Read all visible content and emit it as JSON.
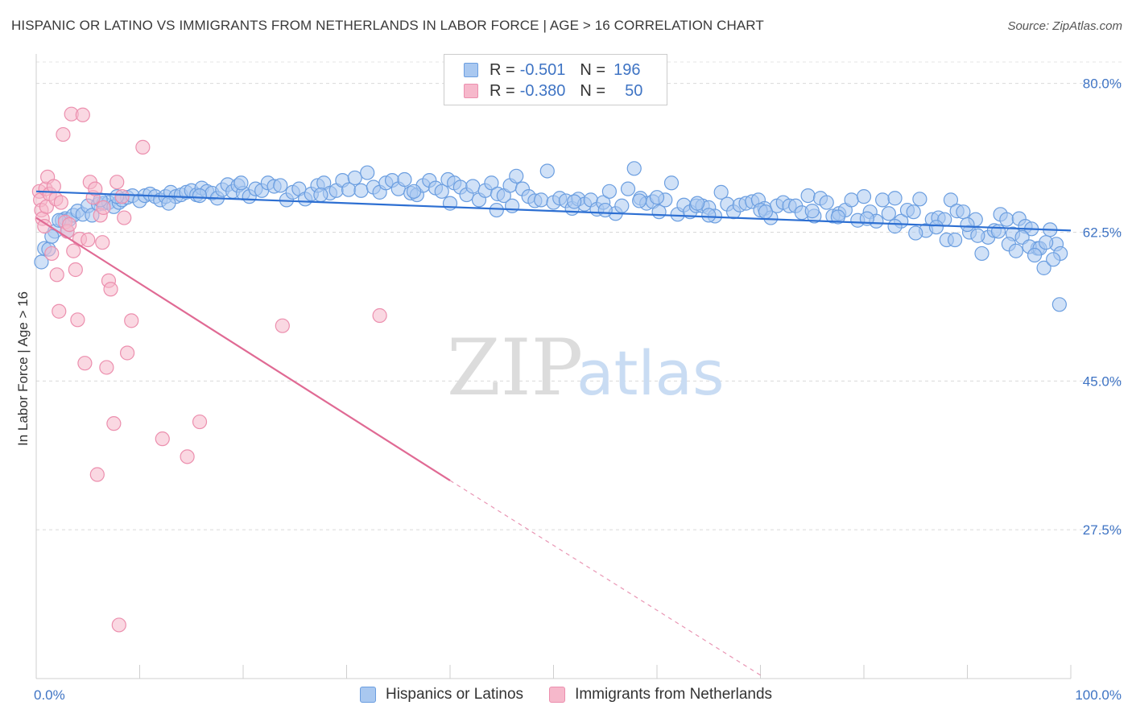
{
  "header": {
    "title": "HISPANIC OR LATINO VS IMMIGRANTS FROM NETHERLANDS IN LABOR FORCE | AGE > 16 CORRELATION CHART",
    "source": "Source: ZipAtlas.com"
  },
  "watermark": {
    "zip": "ZIP",
    "atlas": "atlas"
  },
  "legend": {
    "rows": [
      {
        "r_label": "R =",
        "r_value": "-0.501",
        "n_label": "N =",
        "n_value": "196",
        "color": "#a9c8f0"
      },
      {
        "r_label": "R =",
        "r_value": "-0.380",
        "n_label": "N =",
        "n_value": "50",
        "color": "#f6b8cb"
      }
    ]
  },
  "bottom_legend": [
    {
      "label": "Hispanics or Latinos",
      "color": "#a9c8f0"
    },
    {
      "label": "Immigrants from Netherlands",
      "color": "#f6b8cb"
    }
  ],
  "chart_data": {
    "type": "scatter",
    "title": "HISPANIC OR LATINO VS IMMIGRANTS FROM NETHERLANDS IN LABOR FORCE | AGE > 16 CORRELATION CHART",
    "xlabel": "",
    "ylabel": "In Labor Force | Age > 16",
    "xlim": [
      0,
      100
    ],
    "ylim": [
      10,
      83
    ],
    "x_tick_labels": [
      "0.0%",
      "100.0%"
    ],
    "y_ticks": [
      27.5,
      45.0,
      62.5,
      80.0
    ],
    "y_tick_labels": [
      "27.5%",
      "45.0%",
      "62.5%",
      "80.0%"
    ],
    "grid": true,
    "legend_position": "top-center",
    "series": [
      {
        "name": "Hispanics or Latinos",
        "color": "#a9c8f0",
        "stroke": "#6b9ee0",
        "trend": {
          "x": [
            0,
            100
          ],
          "y": [
            67.3,
            62.7
          ],
          "color": "#2d6fd2"
        },
        "points": [
          [
            0.5,
            59
          ],
          [
            0.8,
            60.6
          ],
          [
            1.2,
            60.5
          ],
          [
            1.8,
            62.6
          ],
          [
            2.5,
            63.9
          ],
          [
            2.8,
            64.1
          ],
          [
            3.2,
            64.0
          ],
          [
            3.6,
            64.5
          ],
          [
            4.0,
            65.0
          ],
          [
            4.5,
            64.6
          ],
          [
            5.0,
            65.6
          ],
          [
            5.4,
            64.5
          ],
          [
            6.0,
            65.8
          ],
          [
            6.5,
            65.9
          ],
          [
            7.0,
            66.0
          ],
          [
            7.5,
            65.5
          ],
          [
            8.0,
            66.0
          ],
          [
            8.3,
            66.3
          ],
          [
            8.8,
            66.6
          ],
          [
            9.3,
            66.8
          ],
          [
            10.0,
            66.2
          ],
          [
            10.5,
            66.8
          ],
          [
            11.0,
            67.0
          ],
          [
            11.5,
            66.7
          ],
          [
            12.0,
            66.3
          ],
          [
            12.5,
            66.7
          ],
          [
            13.0,
            67.2
          ],
          [
            13.5,
            66.7
          ],
          [
            14.0,
            66.9
          ],
          [
            14.5,
            67.2
          ],
          [
            15.0,
            67.4
          ],
          [
            15.5,
            66.9
          ],
          [
            16.0,
            67.7
          ],
          [
            16.5,
            67.3
          ],
          [
            17.0,
            67.1
          ],
          [
            17.5,
            66.5
          ],
          [
            18.0,
            67.5
          ],
          [
            18.5,
            68.1
          ],
          [
            19.0,
            67.3
          ],
          [
            19.5,
            68.0
          ],
          [
            20.0,
            67.1
          ],
          [
            20.6,
            66.7
          ],
          [
            21.2,
            67.6
          ],
          [
            21.8,
            67.4
          ],
          [
            22.4,
            68.3
          ],
          [
            23.0,
            67.9
          ],
          [
            23.6,
            68.0
          ],
          [
            24.2,
            66.3
          ],
          [
            24.8,
            67.2
          ],
          [
            25.4,
            67.6
          ],
          [
            26.0,
            66.4
          ],
          [
            26.6,
            67.0
          ],
          [
            27.2,
            68.0
          ],
          [
            27.8,
            68.3
          ],
          [
            28.4,
            67.1
          ],
          [
            29.0,
            67.4
          ],
          [
            29.6,
            68.6
          ],
          [
            30.2,
            67.5
          ],
          [
            30.8,
            68.9
          ],
          [
            31.4,
            67.4
          ],
          [
            32.0,
            69.5
          ],
          [
            32.6,
            67.8
          ],
          [
            33.2,
            67.2
          ],
          [
            33.8,
            68.3
          ],
          [
            34.4,
            68.6
          ],
          [
            35.0,
            67.6
          ],
          [
            35.6,
            68.7
          ],
          [
            36.2,
            67.1
          ],
          [
            36.8,
            66.9
          ],
          [
            37.4,
            68.0
          ],
          [
            38.0,
            68.6
          ],
          [
            38.6,
            67.7
          ],
          [
            39.2,
            67.3
          ],
          [
            39.8,
            68.7
          ],
          [
            40.4,
            68.3
          ],
          [
            41.0,
            67.8
          ],
          [
            41.6,
            66.9
          ],
          [
            42.2,
            67.9
          ],
          [
            42.8,
            66.3
          ],
          [
            43.4,
            67.4
          ],
          [
            44.0,
            68.3
          ],
          [
            44.6,
            67.0
          ],
          [
            45.2,
            66.8
          ],
          [
            45.8,
            68.0
          ],
          [
            46.4,
            69.1
          ],
          [
            47.0,
            67.6
          ],
          [
            47.6,
            66.7
          ],
          [
            48.2,
            66.2
          ],
          [
            48.8,
            66.3
          ],
          [
            49.4,
            69.7
          ],
          [
            50.0,
            66.0
          ],
          [
            50.6,
            66.5
          ],
          [
            51.2,
            66.2
          ],
          [
            51.8,
            65.3
          ],
          [
            52.4,
            66.4
          ],
          [
            53.0,
            65.8
          ],
          [
            53.6,
            66.3
          ],
          [
            54.2,
            65.2
          ],
          [
            54.8,
            66.0
          ],
          [
            55.4,
            67.3
          ],
          [
            56.0,
            64.7
          ],
          [
            56.6,
            65.6
          ],
          [
            57.2,
            67.6
          ],
          [
            57.8,
            70.0
          ],
          [
            58.4,
            66.5
          ],
          [
            59.0,
            65.9
          ],
          [
            59.6,
            66.1
          ],
          [
            60.2,
            64.9
          ],
          [
            60.8,
            66.3
          ],
          [
            61.4,
            68.3
          ],
          [
            62.0,
            64.6
          ],
          [
            62.6,
            65.7
          ],
          [
            63.2,
            64.9
          ],
          [
            63.8,
            65.6
          ],
          [
            64.4,
            65.6
          ],
          [
            65.0,
            65.4
          ],
          [
            65.6,
            64.4
          ],
          [
            66.2,
            67.2
          ],
          [
            66.8,
            65.8
          ],
          [
            67.4,
            64.9
          ],
          [
            68.0,
            65.7
          ],
          [
            68.6,
            65.9
          ],
          [
            69.2,
            66.1
          ],
          [
            69.8,
            66.3
          ],
          [
            70.4,
            65.3
          ],
          [
            71.0,
            64.2
          ],
          [
            71.6,
            65.6
          ],
          [
            72.2,
            66.0
          ],
          [
            72.8,
            65.6
          ],
          [
            73.4,
            65.6
          ],
          [
            74.0,
            64.8
          ],
          [
            74.6,
            66.8
          ],
          [
            75.2,
            64.4
          ],
          [
            75.8,
            66.5
          ],
          [
            76.4,
            66.0
          ],
          [
            77.0,
            64.4
          ],
          [
            77.6,
            64.7
          ],
          [
            78.2,
            65.1
          ],
          [
            78.8,
            66.3
          ],
          [
            79.4,
            63.9
          ],
          [
            80.0,
            66.7
          ],
          [
            80.6,
            64.9
          ],
          [
            81.2,
            63.8
          ],
          [
            81.8,
            66.3
          ],
          [
            82.4,
            64.7
          ],
          [
            83.0,
            66.5
          ],
          [
            83.6,
            63.8
          ],
          [
            84.2,
            65.1
          ],
          [
            84.8,
            64.9
          ],
          [
            85.4,
            66.4
          ],
          [
            86.0,
            62.7
          ],
          [
            86.6,
            64.0
          ],
          [
            87.2,
            64.2
          ],
          [
            87.8,
            64.0
          ],
          [
            88.4,
            66.3
          ],
          [
            89.0,
            65.0
          ],
          [
            89.6,
            64.9
          ],
          [
            90.2,
            62.5
          ],
          [
            90.8,
            64.0
          ],
          [
            91.4,
            60.0
          ],
          [
            92.0,
            61.9
          ],
          [
            92.6,
            62.7
          ],
          [
            93.2,
            64.6
          ],
          [
            93.8,
            64.0
          ],
          [
            94.4,
            62.3
          ],
          [
            95.0,
            64.1
          ],
          [
            95.6,
            63.2
          ],
          [
            96.2,
            62.9
          ],
          [
            96.8,
            60.6
          ],
          [
            97.4,
            58.3
          ],
          [
            98.0,
            62.8
          ],
          [
            98.6,
            61.1
          ],
          [
            99.0,
            60.0
          ],
          [
            58.3,
            66.2
          ],
          [
            63.9,
            65.9
          ],
          [
            70.0,
            65.1
          ],
          [
            75.0,
            65.0
          ],
          [
            80.3,
            64.1
          ],
          [
            85.0,
            62.4
          ],
          [
            88.0,
            61.6
          ],
          [
            90.0,
            63.4
          ],
          [
            91.0,
            62.1
          ],
          [
            93.0,
            62.6
          ],
          [
            94.0,
            61.1
          ],
          [
            95.3,
            61.9
          ],
          [
            96.0,
            60.8
          ],
          [
            97.0,
            60.6
          ],
          [
            98.3,
            59.3
          ],
          [
            27.5,
            66.9
          ],
          [
            36.5,
            67.3
          ],
          [
            44.5,
            65.1
          ],
          [
            46.0,
            65.6
          ],
          [
            52.0,
            66.1
          ],
          [
            55.0,
            65.1
          ],
          [
            60.0,
            66.6
          ],
          [
            65.0,
            64.5
          ],
          [
            70.5,
            64.9
          ],
          [
            77.5,
            64.3
          ],
          [
            83.0,
            63.2
          ],
          [
            87.0,
            63.1
          ],
          [
            1.5,
            62.0
          ],
          [
            2.2,
            63.9
          ],
          [
            3.0,
            62.6
          ],
          [
            6.2,
            66.3
          ],
          [
            7.8,
            66.7
          ],
          [
            12.8,
            65.9
          ],
          [
            15.8,
            66.8
          ],
          [
            19.8,
            68.3
          ],
          [
            40.0,
            65.9
          ],
          [
            88.8,
            61.6
          ],
          [
            98.9,
            54.0
          ],
          [
            97.6,
            61.3
          ],
          [
            96.5,
            59.8
          ],
          [
            94.7,
            60.3
          ]
        ]
      },
      {
        "name": "Immigrants from Netherlands",
        "color": "#f6b8cb",
        "stroke": "#ec8fae",
        "trend": {
          "x": [
            0,
            40
          ],
          "y": [
            64.2,
            33.3
          ],
          "dash_to": [
            70,
            10.4
          ],
          "color": "#e06a94"
        },
        "points": [
          [
            0.3,
            67.3
          ],
          [
            0.4,
            66.3
          ],
          [
            0.5,
            65.1
          ],
          [
            0.6,
            64.1
          ],
          [
            0.8,
            63.2
          ],
          [
            0.9,
            67.6
          ],
          [
            1.0,
            65.5
          ],
          [
            1.1,
            69.0
          ],
          [
            1.3,
            67.0
          ],
          [
            1.5,
            60.0
          ],
          [
            1.7,
            67.9
          ],
          [
            1.9,
            66.4
          ],
          [
            2.0,
            57.5
          ],
          [
            2.2,
            53.2
          ],
          [
            2.4,
            66.0
          ],
          [
            2.6,
            74.0
          ],
          [
            2.8,
            63.7
          ],
          [
            3.0,
            62.6
          ],
          [
            3.2,
            63.4
          ],
          [
            3.4,
            76.4
          ],
          [
            3.6,
            60.3
          ],
          [
            3.8,
            58.1
          ],
          [
            4.0,
            52.2
          ],
          [
            4.2,
            61.7
          ],
          [
            4.5,
            76.3
          ],
          [
            4.7,
            47.1
          ],
          [
            5.0,
            61.6
          ],
          [
            5.2,
            68.4
          ],
          [
            5.5,
            66.6
          ],
          [
            5.7,
            67.6
          ],
          [
            5.9,
            34.0
          ],
          [
            6.2,
            64.5
          ],
          [
            6.5,
            65.4
          ],
          [
            6.8,
            46.6
          ],
          [
            7.0,
            56.8
          ],
          [
            7.2,
            55.8
          ],
          [
            7.5,
            40.0
          ],
          [
            7.8,
            68.4
          ],
          [
            8.0,
            16.3
          ],
          [
            8.3,
            66.7
          ],
          [
            8.5,
            64.2
          ],
          [
            8.8,
            48.3
          ],
          [
            9.2,
            52.1
          ],
          [
            10.3,
            72.5
          ],
          [
            12.2,
            38.2
          ],
          [
            14.6,
            36.1
          ],
          [
            15.8,
            40.2
          ],
          [
            23.8,
            51.5
          ],
          [
            33.2,
            52.7
          ],
          [
            6.4,
            61.3
          ]
        ]
      }
    ]
  }
}
